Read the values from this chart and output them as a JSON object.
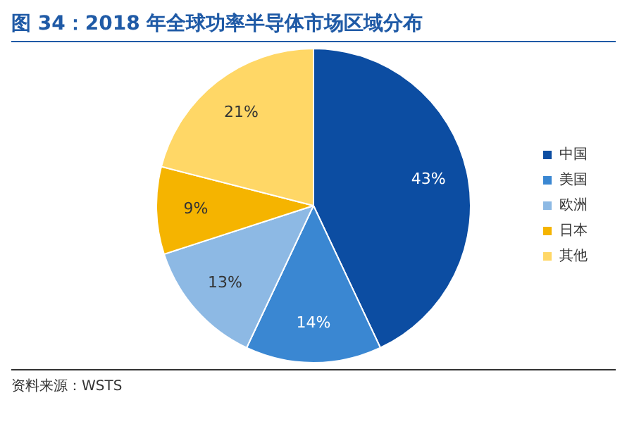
{
  "chart_data": {
    "type": "pie",
    "title": "图 34：2018 年全球功率半导体市场区域分布",
    "categories": [
      "中国",
      "美国",
      "欧洲",
      "日本",
      "其他"
    ],
    "values": [
      43,
      14,
      13,
      9,
      21
    ],
    "value_labels": [
      "43%",
      "14%",
      "13%",
      "9%",
      "21%"
    ],
    "colors": [
      "#0c4da2",
      "#3a87d2",
      "#8db9e4",
      "#f5b400",
      "#ffd766"
    ],
    "legend": "right",
    "annotations": [
      "资料来源：WSTS"
    ]
  }
}
